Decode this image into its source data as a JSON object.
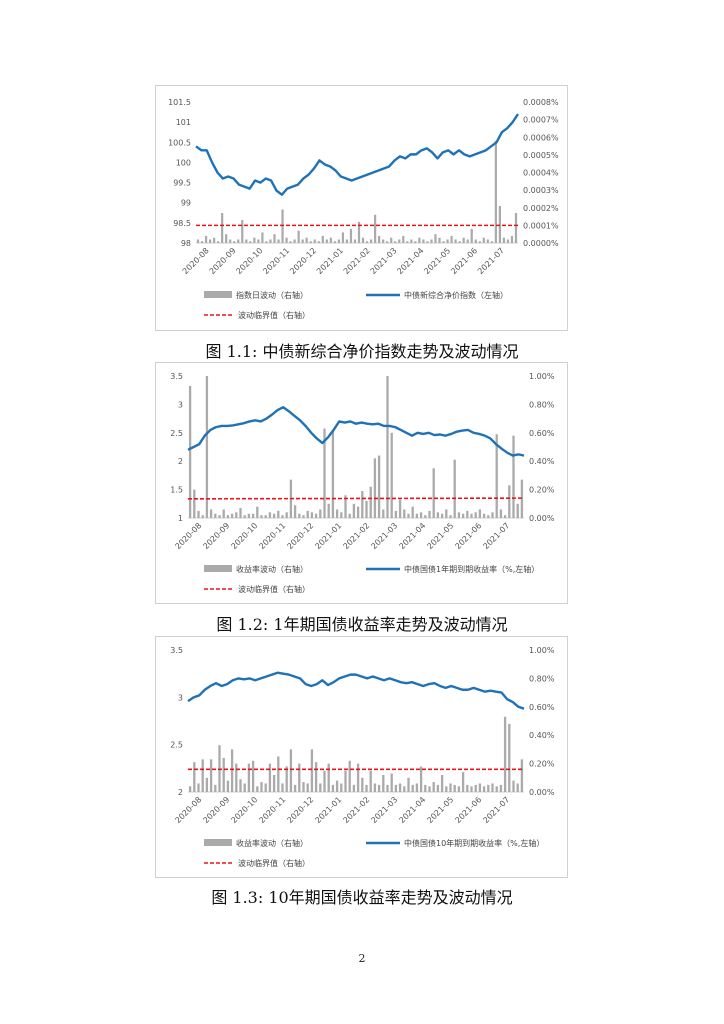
{
  "page_number": "2",
  "charts": [
    {
      "caption": "图 1.1:  中债新综合净价指数走势及波动情况",
      "legend": {
        "bar": "指数日波动（右轴）",
        "line": "中债新综合净价指数（左轴）",
        "threshold": "波动临界值（右轴）"
      },
      "colors": {
        "bar": "#aaaaaa",
        "line": "#1f72b8",
        "threshold": "#e8141b"
      }
    },
    {
      "caption": "图 1.2:  1年期国债收益率走势及波动情况",
      "legend": {
        "bar": "收益率波动（右轴）",
        "line": "中债国债1年期到期收益率（%,左轴）",
        "threshold": "波动临界值（右轴）"
      },
      "colors": {
        "bar": "#aaaaaa",
        "line": "#1f72b8",
        "threshold": "#e8141b"
      }
    },
    {
      "caption": "图 1.3:  10年期国债收益率走势及波动情况",
      "legend": {
        "bar": "收益率波动（右轴）",
        "line": "中债国债10年期到期收益率（%,左轴）",
        "threshold": "波动临界值（右轴）"
      },
      "colors": {
        "bar": "#aaaaaa",
        "line": "#1f72b8",
        "threshold": "#e8141b"
      }
    }
  ],
  "chart_data": [
    {
      "type": "line",
      "x_ticks": [
        "2020-08",
        "2020-09",
        "2020-10",
        "2020-11",
        "2020-12",
        "2021-01",
        "2021-02",
        "2021-03",
        "2021-04",
        "2021-05",
        "2021-06",
        "2021-07"
      ],
      "y_left": {
        "min": 98,
        "max": 101.5,
        "ticks": [
          "98",
          "98.5",
          "99",
          "99.5",
          "100",
          "100.5",
          "101",
          "101.5"
        ]
      },
      "y_right": {
        "min": 0,
        "max": 0.0008,
        "ticks": [
          "0.0000%",
          "0.0001%",
          "0.0002%",
          "0.0003%",
          "0.0004%",
          "0.0005%",
          "0.0006%",
          "0.0007%",
          "0.0008%"
        ]
      },
      "series": [
        {
          "name": "中债新综合净价指数（左轴）",
          "kind": "line",
          "x": [
            0,
            0.2,
            0.4,
            0.6,
            0.8,
            1.0,
            1.2,
            1.4,
            1.6,
            1.8,
            2.0,
            2.2,
            2.4,
            2.6,
            2.8,
            3.0,
            3.2,
            3.4,
            3.6,
            3.8,
            4.0,
            4.2,
            4.4,
            4.6,
            4.8,
            5.0,
            5.2,
            5.4,
            5.6,
            5.8,
            6.0,
            6.2,
            6.4,
            6.6,
            6.8,
            7.0,
            7.2,
            7.4,
            7.6,
            7.8,
            8.0,
            8.2,
            8.4,
            8.6,
            8.8,
            9.0,
            9.2,
            9.4,
            9.6,
            9.8,
            10.0,
            10.2,
            10.4,
            10.6,
            10.8,
            11.0,
            11.2,
            11.4,
            11.6,
            11.8,
            12.0
          ],
          "y": [
            100.4,
            100.3,
            100.3,
            100.0,
            99.75,
            99.6,
            99.65,
            99.6,
            99.45,
            99.4,
            99.35,
            99.55,
            99.5,
            99.6,
            99.55,
            99.3,
            99.2,
            99.35,
            99.4,
            99.45,
            99.6,
            99.7,
            99.85,
            100.05,
            99.95,
            99.9,
            99.8,
            99.65,
            99.6,
            99.55,
            99.6,
            99.65,
            99.7,
            99.75,
            99.8,
            99.85,
            99.9,
            100.05,
            100.15,
            100.1,
            100.2,
            100.2,
            100.3,
            100.35,
            100.25,
            100.1,
            100.25,
            100.3,
            100.2,
            100.3,
            100.2,
            100.15,
            100.2,
            100.25,
            100.3,
            100.4,
            100.5,
            100.75,
            100.85,
            101.0,
            101.2
          ]
        },
        {
          "name": "指数日波动（右轴）",
          "kind": "bar",
          "values": [
            2e-05,
            1e-05,
            4e-05,
            2e-05,
            3e-05,
            1e-05,
            0.00017,
            5e-05,
            2e-05,
            1e-05,
            2e-05,
            0.00013,
            2e-05,
            1e-05,
            3e-05,
            2e-05,
            6e-05,
            1e-05,
            2e-05,
            5e-05,
            2e-05,
            0.00019,
            3e-05,
            1e-05,
            2e-05,
            7e-05,
            2e-05,
            3e-05,
            1e-05,
            2e-05,
            1e-05,
            4e-05,
            2e-05,
            3e-05,
            1e-05,
            2e-05,
            6e-05,
            2e-05,
            8e-05,
            2e-05,
            0.00012,
            3e-05,
            1e-05,
            2e-05,
            0.00016,
            4e-05,
            2e-05,
            1e-05,
            3e-05,
            1e-05,
            2e-05,
            4e-05,
            1e-05,
            2e-05,
            1e-05,
            3e-05,
            2e-05,
            1e-05,
            2e-05,
            5e-05,
            3e-05,
            1e-05,
            2e-05,
            4e-05,
            2e-05,
            1e-05,
            3e-05,
            2e-05,
            8e-05,
            2e-05,
            1e-05,
            3e-05,
            2e-05,
            1e-05,
            0.00058,
            0.00021,
            3e-05,
            2e-05,
            4e-05,
            0.00017
          ]
        },
        {
          "name": "波动临界值（右轴）",
          "kind": "threshold",
          "values": [
            0.0001,
            0.0001
          ]
        }
      ]
    },
    {
      "type": "line",
      "x_ticks": [
        "2020-08",
        "2020-09",
        "2020-10",
        "2020-11",
        "2020-12",
        "2021-01",
        "2021-02",
        "2021-03",
        "2021-04",
        "2021-05",
        "2021-06",
        "2021-07"
      ],
      "y_left": {
        "min": 1,
        "max": 3.5,
        "ticks": [
          "1",
          "1.5",
          "2",
          "2.5",
          "3",
          "3.5"
        ]
      },
      "y_right": {
        "min": 0,
        "max": 1.0,
        "ticks": [
          "0.00%",
          "0.20%",
          "0.40%",
          "0.60%",
          "0.80%",
          "1.00%"
        ]
      },
      "series": [
        {
          "name": "中债国债1年期到期收益率（%,左轴）",
          "kind": "line",
          "x": [
            0,
            0.2,
            0.4,
            0.6,
            0.8,
            1.0,
            1.2,
            1.4,
            1.6,
            1.8,
            2.0,
            2.2,
            2.4,
            2.6,
            2.8,
            3.0,
            3.2,
            3.4,
            3.6,
            3.8,
            4.0,
            4.2,
            4.4,
            4.6,
            4.8,
            5.0,
            5.2,
            5.4,
            5.6,
            5.8,
            6.0,
            6.2,
            6.4,
            6.6,
            6.8,
            7.0,
            7.2,
            7.4,
            7.6,
            7.8,
            8.0,
            8.2,
            8.4,
            8.6,
            8.8,
            9.0,
            9.2,
            9.4,
            9.6,
            9.8,
            10.0,
            10.2,
            10.4,
            10.6,
            10.8,
            11.0,
            11.2,
            11.4,
            11.6,
            11.8,
            12.0
          ],
          "y": [
            2.2,
            2.25,
            2.3,
            2.45,
            2.55,
            2.6,
            2.62,
            2.62,
            2.63,
            2.65,
            2.67,
            2.7,
            2.72,
            2.7,
            2.75,
            2.82,
            2.9,
            2.95,
            2.88,
            2.8,
            2.72,
            2.62,
            2.5,
            2.4,
            2.32,
            2.42,
            2.55,
            2.7,
            2.68,
            2.7,
            2.66,
            2.68,
            2.66,
            2.65,
            2.66,
            2.62,
            2.62,
            2.6,
            2.55,
            2.5,
            2.45,
            2.5,
            2.48,
            2.5,
            2.46,
            2.47,
            2.45,
            2.48,
            2.52,
            2.54,
            2.55,
            2.5,
            2.48,
            2.45,
            2.4,
            2.3,
            2.22,
            2.15,
            2.1,
            2.12,
            2.1
          ]
        },
        {
          "name": "收益率波动（右轴）",
          "kind": "bar",
          "values": [
            0.93,
            0.2,
            0.05,
            0.02,
            1.0,
            0.06,
            0.03,
            0.02,
            0.06,
            0.02,
            0.03,
            0.04,
            0.07,
            0.02,
            0.03,
            0.03,
            0.08,
            0.02,
            0.02,
            0.04,
            0.03,
            0.05,
            0.02,
            0.04,
            0.27,
            0.09,
            0.03,
            0.02,
            0.05,
            0.04,
            0.03,
            0.06,
            0.63,
            0.1,
            0.62,
            0.06,
            0.04,
            0.16,
            0.03,
            0.1,
            0.08,
            0.19,
            0.12,
            0.22,
            0.42,
            0.44,
            0.06,
            1.0,
            0.6,
            0.05,
            0.13,
            0.06,
            0.03,
            0.08,
            0.03,
            0.04,
            0.02,
            0.05,
            0.35,
            0.04,
            0.03,
            0.06,
            0.02,
            0.41,
            0.04,
            0.03,
            0.05,
            0.03,
            0.04,
            0.06,
            0.03,
            0.02,
            0.04,
            0.59,
            0.06,
            0.02,
            0.23,
            0.58,
            0.1,
            0.27
          ]
        },
        {
          "name": "波动临界值（右轴）",
          "kind": "threshold",
          "values": [
            0.135,
            0.14
          ]
        }
      ]
    },
    {
      "type": "line",
      "x_ticks": [
        "2020-08",
        "2020-09",
        "2020-10",
        "2020-11",
        "2020-12",
        "2021-01",
        "2021-02",
        "2021-03",
        "2021-04",
        "2021-05",
        "2021-06",
        "2021-07"
      ],
      "y_left": {
        "min": 2,
        "max": 3.5,
        "ticks": [
          "2",
          "2.5",
          "3",
          "3.5"
        ]
      },
      "y_right": {
        "min": 0,
        "max": 1.0,
        "ticks": [
          "0.00%",
          "0.20%",
          "0.40%",
          "0.60%",
          "0.80%",
          "1.00%"
        ]
      },
      "series": [
        {
          "name": "中债国债10年期到期收益率（%,左轴）",
          "kind": "line",
          "x": [
            0,
            0.2,
            0.4,
            0.6,
            0.8,
            1.0,
            1.2,
            1.4,
            1.6,
            1.8,
            2.0,
            2.2,
            2.4,
            2.6,
            2.8,
            3.0,
            3.2,
            3.4,
            3.6,
            3.8,
            4.0,
            4.2,
            4.4,
            4.6,
            4.8,
            5.0,
            5.2,
            5.4,
            5.6,
            5.8,
            6.0,
            6.2,
            6.4,
            6.6,
            6.8,
            7.0,
            7.2,
            7.4,
            7.6,
            7.8,
            8.0,
            8.2,
            8.4,
            8.6,
            8.8,
            9.0,
            9.2,
            9.4,
            9.6,
            9.8,
            10.0,
            10.2,
            10.4,
            10.6,
            10.8,
            11.0,
            11.2,
            11.4,
            11.6,
            11.8,
            12.0
          ],
          "y": [
            2.96,
            3.0,
            3.02,
            3.08,
            3.12,
            3.15,
            3.12,
            3.14,
            3.18,
            3.2,
            3.19,
            3.2,
            3.18,
            3.2,
            3.22,
            3.24,
            3.26,
            3.25,
            3.24,
            3.22,
            3.2,
            3.14,
            3.12,
            3.14,
            3.18,
            3.13,
            3.16,
            3.2,
            3.22,
            3.24,
            3.24,
            3.22,
            3.2,
            3.22,
            3.2,
            3.18,
            3.2,
            3.18,
            3.16,
            3.15,
            3.16,
            3.14,
            3.12,
            3.14,
            3.15,
            3.12,
            3.1,
            3.12,
            3.1,
            3.08,
            3.08,
            3.1,
            3.08,
            3.06,
            3.07,
            3.06,
            3.05,
            2.98,
            2.95,
            2.9,
            2.88
          ]
        },
        {
          "name": "收益率波动（右轴）",
          "kind": "bar",
          "values": [
            0.04,
            0.21,
            0.06,
            0.23,
            0.1,
            0.23,
            0.05,
            0.33,
            0.24,
            0.08,
            0.3,
            0.2,
            0.09,
            0.06,
            0.2,
            0.22,
            0.04,
            0.07,
            0.06,
            0.2,
            0.12,
            0.25,
            0.06,
            0.18,
            0.3,
            0.05,
            0.2,
            0.07,
            0.06,
            0.3,
            0.21,
            0.06,
            0.15,
            0.2,
            0.05,
            0.08,
            0.06,
            0.15,
            0.22,
            0.05,
            0.2,
            0.1,
            0.05,
            0.15,
            0.06,
            0.05,
            0.12,
            0.05,
            0.13,
            0.05,
            0.06,
            0.04,
            0.1,
            0.05,
            0.06,
            0.18,
            0.05,
            0.04,
            0.07,
            0.05,
            0.12,
            0.04,
            0.06,
            0.05,
            0.04,
            0.14,
            0.05,
            0.04,
            0.05,
            0.06,
            0.04,
            0.05,
            0.06,
            0.04,
            0.05,
            0.53,
            0.48,
            0.08,
            0.06,
            0.23
          ]
        },
        {
          "name": "波动临界值（右轴）",
          "kind": "threshold",
          "values": [
            0.16,
            0.16
          ]
        }
      ]
    }
  ]
}
